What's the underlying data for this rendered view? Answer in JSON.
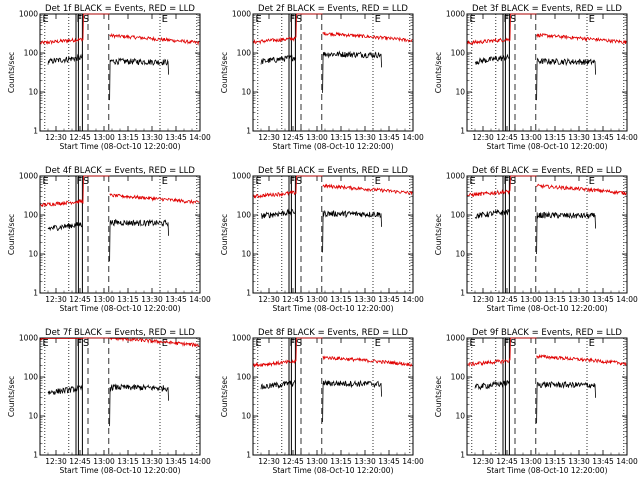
{
  "chart_data": {
    "type": "line",
    "title_template": "Det {det} BLACK = Events, RED = LLD",
    "xlabel": "Start Time (08-Oct-10 12:20:00)",
    "ylabel": "Counts/sec",
    "yscale": "log",
    "ylim": [
      1,
      1000
    ],
    "ytick_labels": [
      "1",
      "10",
      "100",
      "1000"
    ],
    "xticks": [
      "12:30",
      "12:45",
      "13:00",
      "13:15",
      "13:30",
      "13:45",
      "14:00"
    ],
    "colors": {
      "events": "#000000",
      "lld": "#e00000"
    },
    "markers": [
      "E",
      "F",
      "S",
      "E"
    ],
    "panels": [
      {
        "det": "1f",
        "xticks": [
          "12:30",
          "12:45",
          "13:00",
          "13:15",
          "13:30",
          "13:45",
          "14:00"
        ],
        "series": [
          {
            "name": "Events",
            "level": 60,
            "post_level": 62
          },
          {
            "name": "LLD",
            "level": 180,
            "post_level": 280
          }
        ]
      },
      {
        "det": "2f",
        "xticks": [
          "12:30",
          "12:45",
          "13:00",
          "13:15",
          "13:30",
          "13:45",
          "14:00"
        ],
        "series": [
          {
            "name": "Events",
            "level": 60,
            "post_level": 95
          },
          {
            "name": "LLD",
            "level": 190,
            "post_level": 320
          }
        ]
      },
      {
        "det": "3f",
        "xticks": [
          "12:30",
          "12:45",
          "13:00",
          "13:15",
          "13:30",
          "13:45",
          "14:00"
        ],
        "series": [
          {
            "name": "Events",
            "level": 60,
            "post_level": 62
          },
          {
            "name": "LLD",
            "level": 180,
            "post_level": 290
          }
        ]
      },
      {
        "det": "4f",
        "xticks": [
          "12:30",
          "12:45",
          "13:00",
          "13:15",
          "13:30",
          "13:45",
          "14:00"
        ],
        "series": [
          {
            "name": "Events",
            "level": 45,
            "post_level": 65
          },
          {
            "name": "LLD",
            "level": 180,
            "post_level": 320
          }
        ]
      },
      {
        "det": "5f",
        "xticks": [
          "12:30",
          "12:45",
          "13:00",
          "13:15",
          "13:30",
          "13:45",
          "14:00"
        ],
        "series": [
          {
            "name": "Events",
            "level": 95,
            "post_level": 110
          },
          {
            "name": "LLD",
            "level": 300,
            "post_level": 560
          }
        ]
      },
      {
        "det": "6f",
        "xticks": [
          "12:30",
          "12:45",
          "13:00",
          "13:15",
          "13:30",
          "13:45",
          "14:00"
        ],
        "series": [
          {
            "name": "Events",
            "level": 95,
            "post_level": 100
          },
          {
            "name": "LLD",
            "level": 320,
            "post_level": 560
          }
        ]
      },
      {
        "det": "7f",
        "xticks": [
          "12:30",
          "12:45",
          "13:00",
          "13:15",
          "13:30",
          "13:45",
          "14:00"
        ],
        "series": [
          {
            "name": "Events",
            "level": 40,
            "post_level": 55
          },
          {
            "name": "LLD",
            "level": 1000,
            "post_level": 1000
          }
        ]
      },
      {
        "det": "8f",
        "xticks": [
          "12:30",
          "12:45",
          "13:00",
          "13:15",
          "13:30",
          "13:45",
          "14:00"
        ],
        "series": [
          {
            "name": "Events",
            "level": 55,
            "post_level": 70
          },
          {
            "name": "LLD",
            "level": 200,
            "post_level": 320
          }
        ]
      },
      {
        "det": "9f",
        "xticks": [
          "12:30",
          "12:45",
          "13:00",
          "13:15",
          "13:30",
          "13:45",
          "14:00"
        ],
        "series": [
          {
            "name": "Events",
            "level": 55,
            "post_level": 65
          },
          {
            "name": "LLD",
            "level": 210,
            "post_level": 340
          }
        ]
      }
    ]
  }
}
